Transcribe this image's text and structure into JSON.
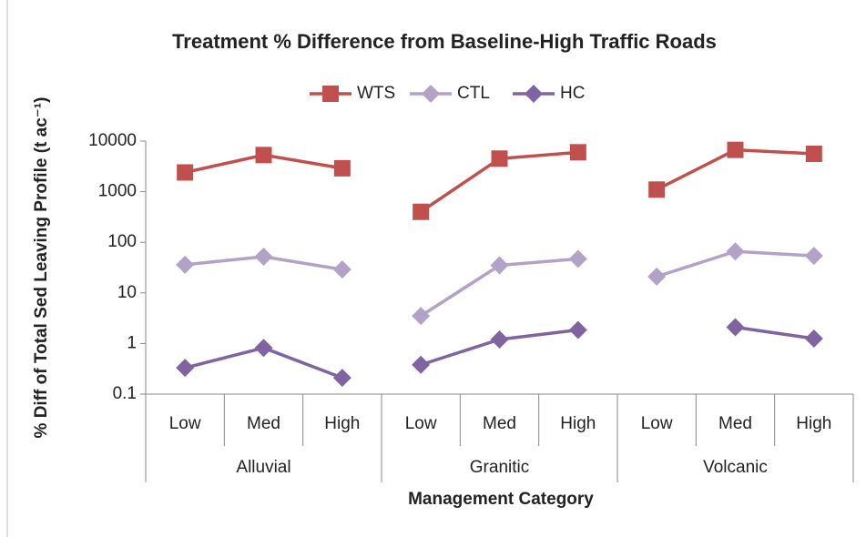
{
  "chart_data": {
    "type": "line",
    "title": "Treatment % Difference from Baseline-High Traffic Roads",
    "x_label": "Management Category",
    "y_label": "% Diff of Total Sed Leaving Profile (t ac⁻¹)",
    "category_groups": [
      {
        "name": "Alluvial",
        "categories": [
          "Low",
          "Med",
          "High"
        ]
      },
      {
        "name": "Granitic",
        "categories": [
          "Low",
          "Med",
          "High"
        ]
      },
      {
        "name": "Volcanic",
        "categories": [
          "Low",
          "Med",
          "High"
        ]
      }
    ],
    "series": [
      {
        "name": "WTS",
        "color": "#c0504d",
        "marker": "square",
        "values": [
          [
            2400,
            5300,
            2900
          ],
          [
            400,
            4500,
            6000
          ],
          [
            1100,
            6700,
            5600
          ]
        ]
      },
      {
        "name": "CTL",
        "color": "#b3a2c7",
        "marker": "diamond",
        "values": [
          [
            36,
            52,
            29
          ],
          [
            3.5,
            35,
            47
          ],
          [
            21,
            66,
            54
          ]
        ]
      },
      {
        "name": "HC",
        "color": "#8064a2",
        "marker": "diamond",
        "values": [
          [
            0.33,
            0.82,
            0.21
          ],
          [
            0.38,
            1.2,
            1.85
          ],
          [
            null,
            2.1,
            1.25
          ]
        ]
      }
    ],
    "ylim": [
      0.1,
      10000
    ],
    "yticks": [
      0.1,
      1,
      10,
      100,
      1000,
      10000
    ],
    "log_scale": true,
    "legend": "top"
  }
}
